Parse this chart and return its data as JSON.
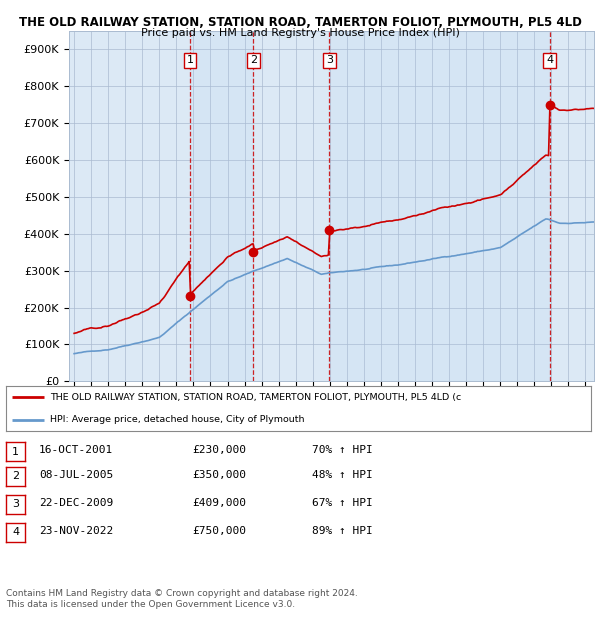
{
  "title": "THE OLD RAILWAY STATION, STATION ROAD, TAMERTON FOLIOT, PLYMOUTH, PL5 4LD",
  "subtitle": "Price paid vs. HM Land Registry's House Price Index (HPI)",
  "bg_color": "#dce9f5",
  "plot_bg_color": "#dce9f5",
  "ylabel_values": [
    "£0",
    "£100K",
    "£200K",
    "£300K",
    "£400K",
    "£500K",
    "£600K",
    "£700K",
    "£800K",
    "£900K"
  ],
  "ylim": [
    0,
    950000
  ],
  "xlim_start": 1994.7,
  "xlim_end": 2025.5,
  "sales": [
    {
      "num": 1,
      "date": "16-OCT-2001",
      "year": 2001.79,
      "price": 230000,
      "pct": "70%",
      "dir": "↑"
    },
    {
      "num": 2,
      "date": "08-JUL-2005",
      "year": 2005.52,
      "price": 350000,
      "pct": "48%",
      "dir": "↑"
    },
    {
      "num": 3,
      "date": "22-DEC-2009",
      "year": 2009.98,
      "price": 409000,
      "pct": "67%",
      "dir": "↑"
    },
    {
      "num": 4,
      "date": "23-NOV-2022",
      "year": 2022.9,
      "price": 750000,
      "pct": "89%",
      "dir": "↑"
    }
  ],
  "hpi_label": "HPI: Average price, detached house, City of Plymouth",
  "property_label": "THE OLD RAILWAY STATION, STATION ROAD, TAMERTON FOLIOT, PLYMOUTH, PL5 4LD (c",
  "footnote": "Contains HM Land Registry data © Crown copyright and database right 2024.\nThis data is licensed under the Open Government Licence v3.0.",
  "red_color": "#cc0000",
  "blue_color": "#6699cc",
  "grid_color": "#aabbd0"
}
